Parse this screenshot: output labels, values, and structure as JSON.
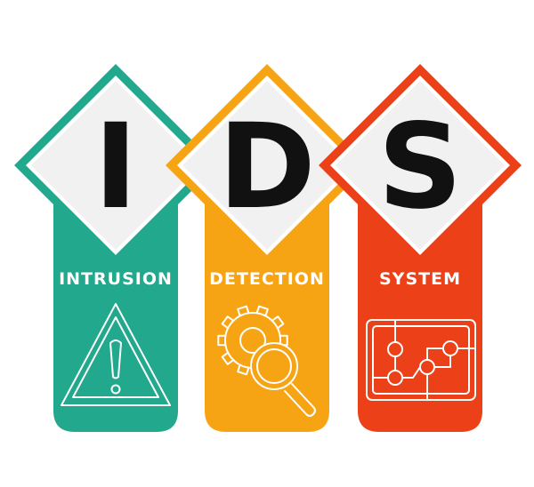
{
  "colors": {
    "green": "#22a88d",
    "orange": "#f7a414",
    "red": "#ec4118",
    "diamond_fill": "#f1f1f1",
    "letter": "#111111",
    "text": "#ffffff"
  },
  "columns": [
    {
      "letter": "I",
      "word": "INTRUSION",
      "icon": "warning-triangle-icon"
    },
    {
      "letter": "D",
      "word": "DETECTION",
      "icon": "gear-magnifier-icon"
    },
    {
      "letter": "S",
      "word": "SYSTEM",
      "icon": "circuit-board-icon"
    }
  ]
}
